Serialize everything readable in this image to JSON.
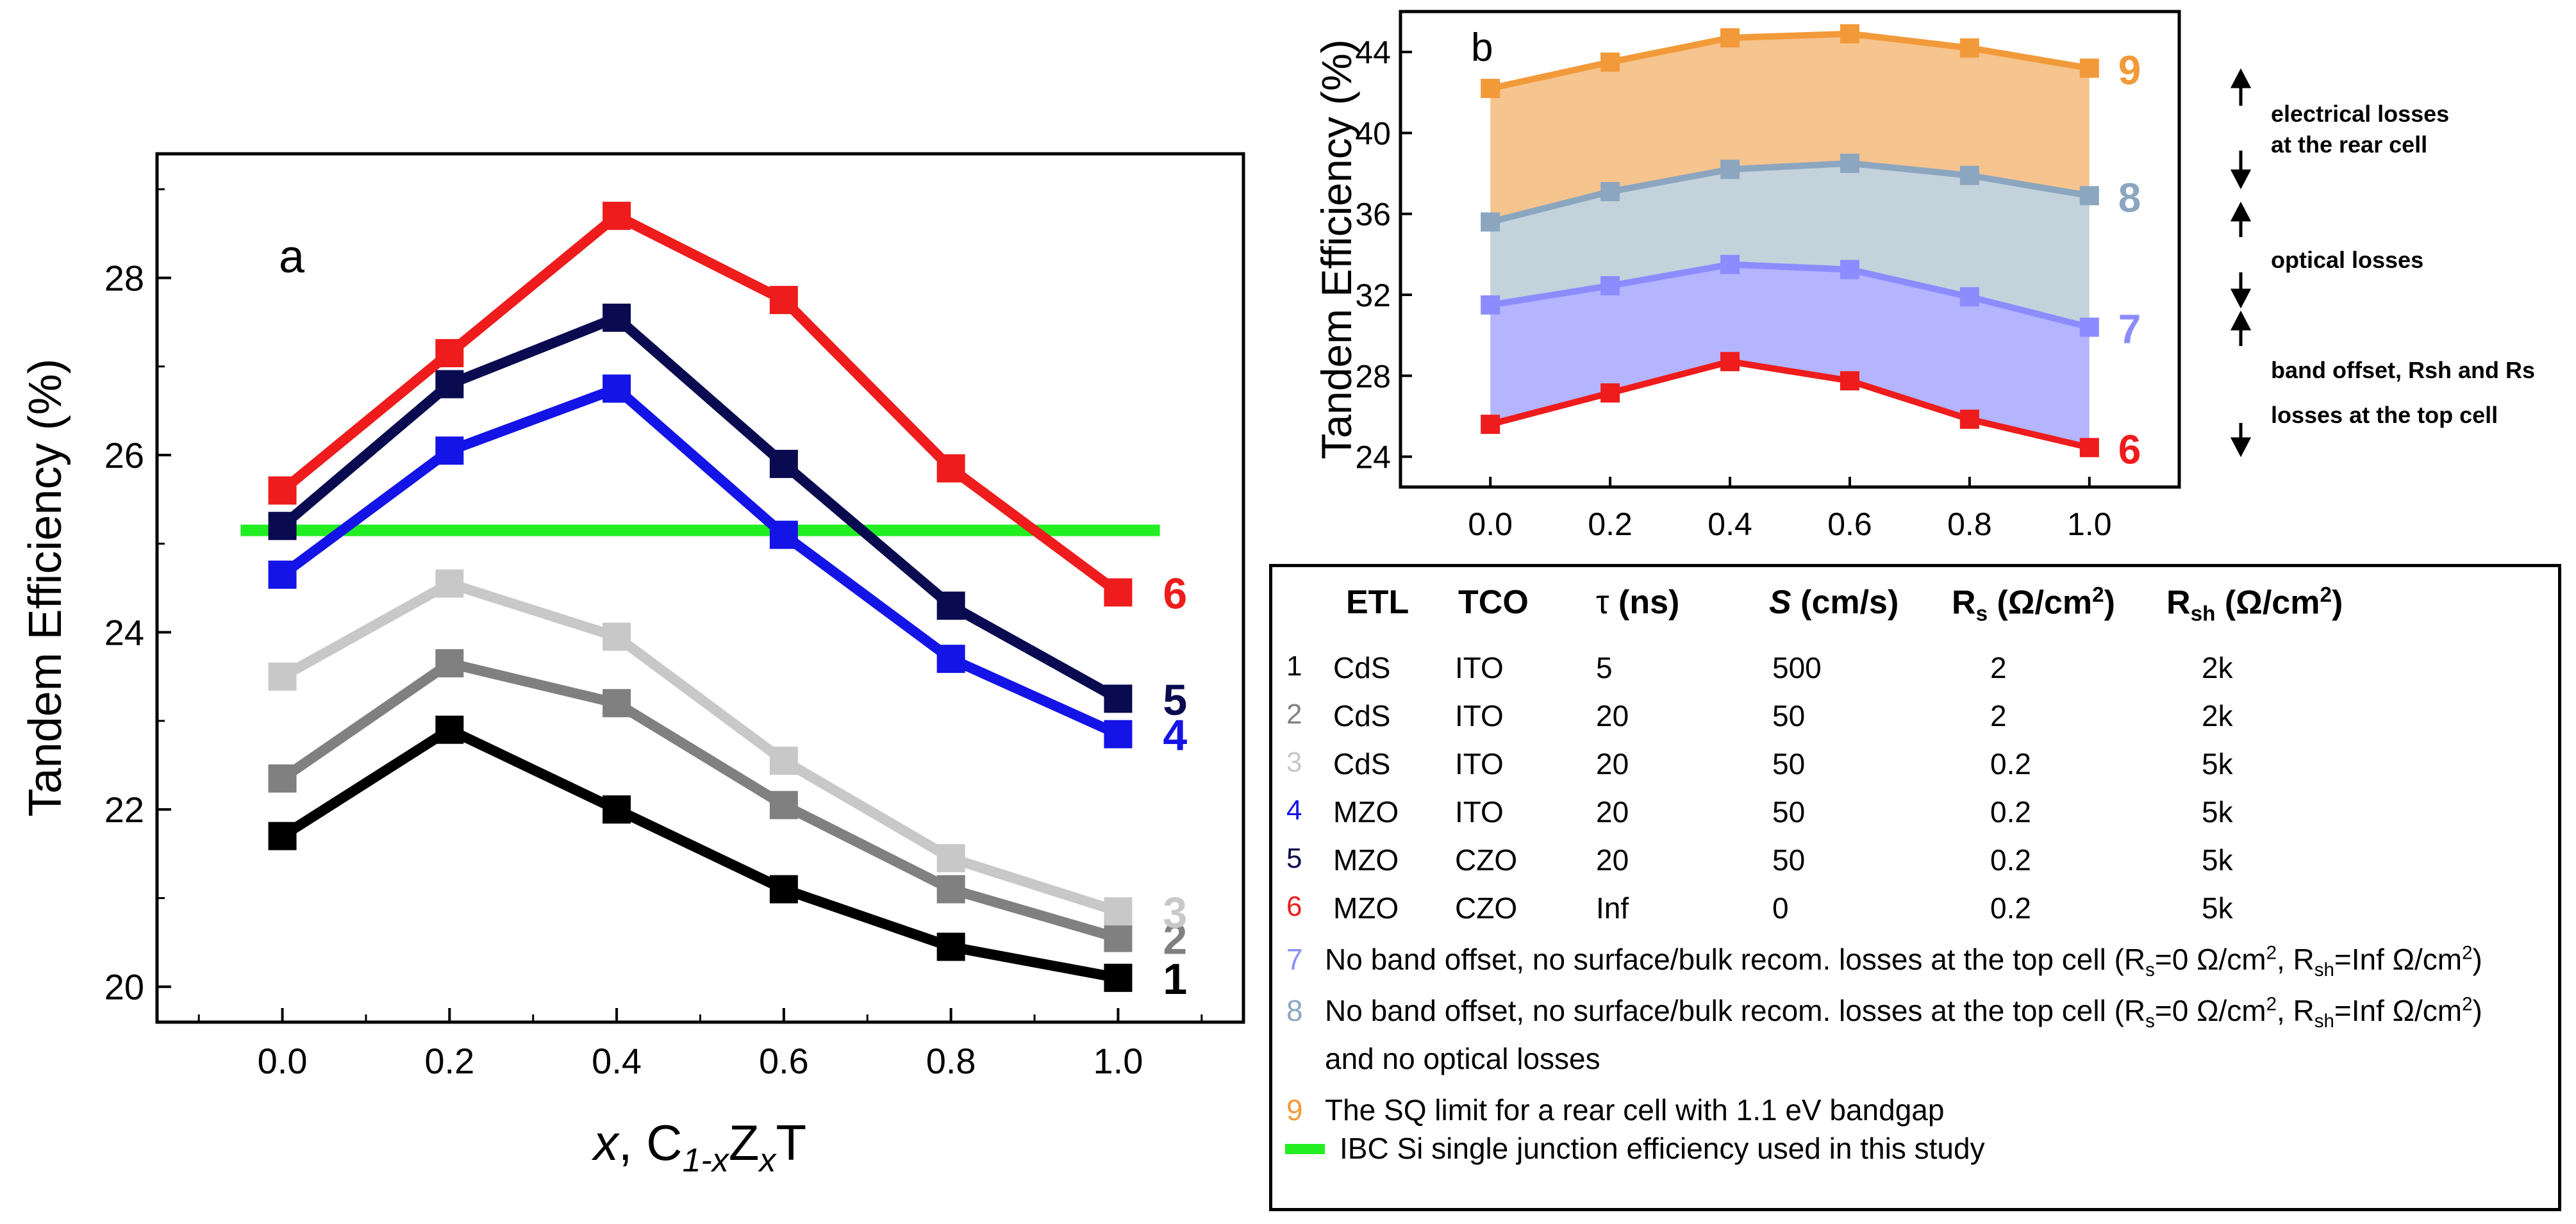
{
  "colors": {
    "c1": "#000000",
    "c2": "#808080",
    "c3": "#c8c8c8",
    "c4": "#1414e6",
    "c5": "#0a0a50",
    "c6": "#ee1c1c",
    "c7": "#8c8cff",
    "c8": "#8ca6c0",
    "c9": "#f29a3a",
    "green": "#22ee22"
  },
  "chart_data": [
    {
      "panel": "a",
      "type": "line",
      "panel_label": "a",
      "xlabel": "x, C1-xZxT",
      "ylabel": "Tandem Efficiency (%)",
      "x": [
        0.0,
        0.2,
        0.4,
        0.6,
        0.8,
        1.0
      ],
      "xticks": [
        "0.0",
        "0.2",
        "0.4",
        "0.6",
        "0.8",
        "1.0"
      ],
      "yticks": [
        "20",
        "22",
        "24",
        "26",
        "28"
      ],
      "xlim": [
        -0.15,
        1.15
      ],
      "ylim": [
        19.6,
        29.4
      ],
      "series": [
        {
          "name": "1",
          "values": [
            21.7,
            22.9,
            22.0,
            21.1,
            20.45,
            20.1
          ]
        },
        {
          "name": "2",
          "values": [
            22.35,
            23.65,
            23.2,
            22.05,
            21.1,
            20.55
          ]
        },
        {
          "name": "3",
          "values": [
            23.5,
            24.55,
            23.95,
            22.55,
            21.45,
            20.85
          ]
        },
        {
          "name": "4",
          "values": [
            24.65,
            26.05,
            26.75,
            25.1,
            23.7,
            22.85
          ]
        },
        {
          "name": "5",
          "values": [
            25.2,
            26.8,
            27.55,
            25.9,
            24.3,
            23.25
          ]
        },
        {
          "name": "6",
          "values": [
            25.6,
            27.15,
            28.7,
            27.75,
            25.85,
            24.45
          ]
        }
      ],
      "reference_line": {
        "name": "IBC Si single junction efficiency used in this study",
        "value": 25.15,
        "x_range": [
          -0.05,
          1.05
        ]
      }
    },
    {
      "panel": "b",
      "type": "area",
      "panel_label": "b",
      "xlabel": "x, C1-xZxT",
      "ylabel": "Tandem Efficiency (%)",
      "x": [
        0.0,
        0.2,
        0.4,
        0.6,
        0.8,
        1.0
      ],
      "xticks": [
        "0.0",
        "0.2",
        "0.4",
        "0.6",
        "0.8",
        "1.0"
      ],
      "yticks": [
        "24",
        "28",
        "32",
        "36",
        "40",
        "44"
      ],
      "xlim": [
        -0.15,
        1.15
      ],
      "ylim": [
        22.5,
        46.0
      ],
      "series": [
        {
          "name": "6",
          "values": [
            25.6,
            27.15,
            28.7,
            27.75,
            25.85,
            24.45
          ]
        },
        {
          "name": "7",
          "values": [
            31.5,
            32.45,
            33.5,
            33.25,
            31.9,
            30.4
          ]
        },
        {
          "name": "8",
          "values": [
            35.6,
            37.1,
            38.2,
            38.5,
            37.9,
            36.9
          ]
        },
        {
          "name": "9",
          "values": [
            42.2,
            43.5,
            44.7,
            44.9,
            44.2,
            43.2
          ]
        }
      ],
      "annotations": [
        "electrical losses",
        "at the rear cell",
        "optical losses",
        "band offset, Rsh and Rs",
        "losses at the top cell"
      ]
    }
  ],
  "axis_x_label": {
    "var": "x",
    "comma": ", ",
    "c": "C",
    "csub": "1-x",
    "z": "Z",
    "zsub": "x",
    "t": "T"
  },
  "table": {
    "headers": {
      "etl": "ETL",
      "tco": "TCO",
      "tau_sym": "τ",
      "tau_unit": "(ns)",
      "s_sym": "S",
      "s_unit": "(cm/s)",
      "rs_base": "R",
      "rs_sub": "s",
      "rs_unit_a": "(Ω/cm",
      "rs_sup": "2",
      "rs_unit_b": ")",
      "rsh_base": "R",
      "rsh_sub": "sh",
      "rsh_unit_a": "(Ω/cm",
      "rsh_sup": "2",
      "rsh_unit_b": ")"
    },
    "rows": [
      {
        "n": "1",
        "etl": "CdS",
        "tco": "ITO",
        "tau": "5",
        "s": "500",
        "rs": "2",
        "rsh": "2k"
      },
      {
        "n": "2",
        "etl": "CdS",
        "tco": "ITO",
        "tau": "20",
        "s": "50",
        "rs": "2",
        "rsh": "2k"
      },
      {
        "n": "3",
        "etl": "CdS",
        "tco": "ITO",
        "tau": "20",
        "s": "50",
        "rs": "0.2",
        "rsh": "5k"
      },
      {
        "n": "4",
        "etl": "MZO",
        "tco": "ITO",
        "tau": "20",
        "s": "50",
        "rs": "0.2",
        "rsh": "5k"
      },
      {
        "n": "5",
        "etl": "MZO",
        "tco": "CZO",
        "tau": "20",
        "s": "50",
        "rs": "0.2",
        "rsh": "5k"
      },
      {
        "n": "6",
        "etl": "MZO",
        "tco": "CZO",
        "tau": "Inf",
        "s": "0",
        "rs": "0.2",
        "rsh": "5k"
      }
    ],
    "notes": {
      "n7": "7",
      "n7_a": "No band offset, no surface/bulk recom. losses at the top cell (R",
      "n7_s": "s",
      "n7_b": "=0 Ω/cm",
      "n7_sup": "2",
      "n7_c": ", R",
      "n7_sh": "sh",
      "n7_d": "=Inf Ω/cm",
      "n7_sup2": "2",
      "n7_e": ")",
      "n8": "8",
      "n8_a": "No band offset, no surface/bulk recom. losses at the top cell (R",
      "n8_s": "s",
      "n8_b": "=0 Ω/cm",
      "n8_sup": "2",
      "n8_c": ", R",
      "n8_sh": "sh",
      "n8_d": "=Inf Ω/cm",
      "n8_sup2": "2",
      "n8_e": ")",
      "n8_line2": "and no optical losses",
      "n9": "9",
      "n9_text": "The SQ limit for a rear cell with 1.1 eV bandgap",
      "green_text": "IBC Si single junction efficiency used in this study"
    }
  }
}
